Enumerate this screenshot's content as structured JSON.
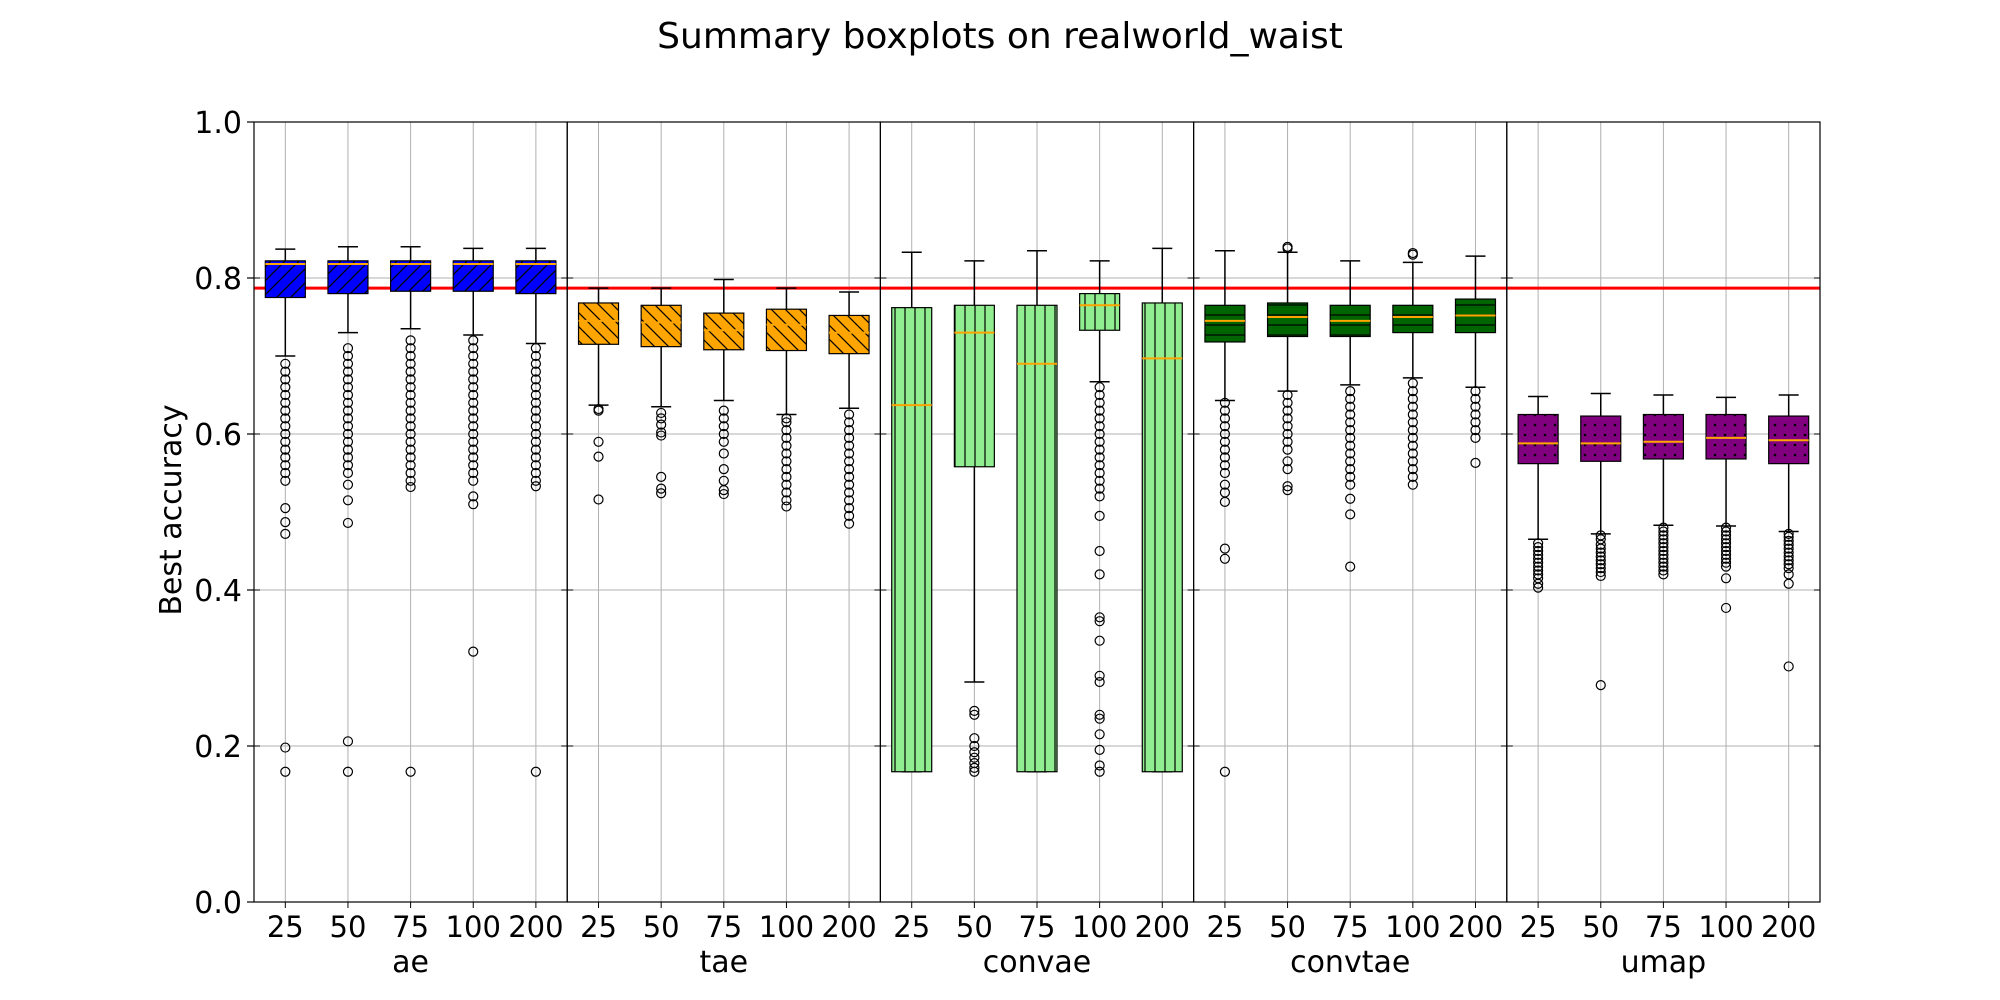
{
  "chart_data": {
    "type": "boxplot",
    "title": "Summary boxplots on realworld_waist",
    "ylabel": "Best accuracy",
    "ylim": [
      0.0,
      1.0
    ],
    "yticks": [
      "0.0",
      "0.2",
      "0.4",
      "0.6",
      "0.8",
      "1.0"
    ],
    "grid": true,
    "reference_line": {
      "y": 0.787,
      "color": "#ff0000"
    },
    "panels": [
      {
        "name": "ae",
        "color": "#0000ff",
        "hatch": "diagonal-up",
        "categories": [
          "25",
          "50",
          "75",
          "100",
          "200"
        ],
        "boxes": [
          {
            "whislo": 0.7,
            "q1": 0.775,
            "med": 0.818,
            "q3": 0.822,
            "whishi": 0.837,
            "fliers": [
              0.167,
              0.198,
              0.472,
              0.487,
              0.505,
              0.54,
              0.55,
              0.56,
              0.57,
              0.58,
              0.59,
              0.6,
              0.61,
              0.62,
              0.63,
              0.64,
              0.65,
              0.66,
              0.67,
              0.68,
              0.69
            ]
          },
          {
            "whislo": 0.73,
            "q1": 0.78,
            "med": 0.818,
            "q3": 0.822,
            "whishi": 0.84,
            "fliers": [
              0.167,
              0.206,
              0.486,
              0.515,
              0.535,
              0.55,
              0.56,
              0.57,
              0.58,
              0.59,
              0.6,
              0.61,
              0.62,
              0.63,
              0.64,
              0.65,
              0.66,
              0.67,
              0.68,
              0.69,
              0.7,
              0.71
            ]
          },
          {
            "whislo": 0.735,
            "q1": 0.783,
            "med": 0.818,
            "q3": 0.822,
            "whishi": 0.84,
            "fliers": [
              0.167,
              0.532,
              0.54,
              0.55,
              0.56,
              0.57,
              0.58,
              0.59,
              0.6,
              0.61,
              0.62,
              0.63,
              0.64,
              0.65,
              0.66,
              0.67,
              0.68,
              0.69,
              0.7,
              0.71,
              0.72
            ]
          },
          {
            "whislo": 0.727,
            "q1": 0.783,
            "med": 0.818,
            "q3": 0.822,
            "whishi": 0.838,
            "fliers": [
              0.321,
              0.51,
              0.52,
              0.54,
              0.55,
              0.56,
              0.57,
              0.58,
              0.59,
              0.6,
              0.61,
              0.62,
              0.63,
              0.64,
              0.65,
              0.66,
              0.67,
              0.68,
              0.69,
              0.7,
              0.71,
              0.72
            ]
          },
          {
            "whislo": 0.716,
            "q1": 0.78,
            "med": 0.818,
            "q3": 0.822,
            "whishi": 0.838,
            "fliers": [
              0.167,
              0.533,
              0.54,
              0.55,
              0.56,
              0.57,
              0.58,
              0.59,
              0.6,
              0.61,
              0.62,
              0.63,
              0.64,
              0.65,
              0.66,
              0.67,
              0.68,
              0.69,
              0.7,
              0.71
            ]
          }
        ]
      },
      {
        "name": "tae",
        "color": "#ffa500",
        "hatch": "diagonal-down",
        "categories": [
          "25",
          "50",
          "75",
          "100",
          "200"
        ],
        "boxes": [
          {
            "whislo": 0.637,
            "q1": 0.715,
            "med": 0.745,
            "q3": 0.768,
            "whishi": 0.787,
            "fliers": [
              0.516,
              0.571,
              0.59,
              0.63,
              0.632
            ]
          },
          {
            "whislo": 0.635,
            "q1": 0.712,
            "med": 0.743,
            "q3": 0.765,
            "whishi": 0.787,
            "fliers": [
              0.524,
              0.53,
              0.545,
              0.598,
              0.602,
              0.612,
              0.62,
              0.627
            ]
          },
          {
            "whislo": 0.643,
            "q1": 0.708,
            "med": 0.733,
            "q3": 0.755,
            "whishi": 0.798,
            "fliers": [
              0.523,
              0.528,
              0.54,
              0.555,
              0.575,
              0.59,
              0.6,
              0.61,
              0.62,
              0.63
            ]
          },
          {
            "whislo": 0.625,
            "q1": 0.707,
            "med": 0.74,
            "q3": 0.76,
            "whishi": 0.787,
            "fliers": [
              0.507,
              0.515,
              0.525,
              0.535,
              0.545,
              0.555,
              0.565,
              0.575,
              0.585,
              0.595,
              0.605,
              0.615,
              0.62
            ]
          },
          {
            "whislo": 0.633,
            "q1": 0.703,
            "med": 0.73,
            "q3": 0.752,
            "whishi": 0.782,
            "fliers": [
              0.485,
              0.495,
              0.505,
              0.515,
              0.525,
              0.535,
              0.545,
              0.555,
              0.565,
              0.575,
              0.585,
              0.595,
              0.605,
              0.615,
              0.625
            ]
          }
        ]
      },
      {
        "name": "convae",
        "color": "#90ee90",
        "hatch": "vertical",
        "categories": [
          "25",
          "50",
          "75",
          "100",
          "200"
        ],
        "boxes": [
          {
            "whislo": 0.167,
            "q1": 0.167,
            "med": 0.637,
            "q3": 0.762,
            "whishi": 0.833,
            "fliers": []
          },
          {
            "whislo": 0.282,
            "q1": 0.558,
            "med": 0.73,
            "q3": 0.765,
            "whishi": 0.822,
            "fliers": [
              0.167,
              0.172,
              0.178,
              0.185,
              0.192,
              0.2,
              0.21,
              0.24,
              0.245
            ]
          },
          {
            "whislo": 0.167,
            "q1": 0.167,
            "med": 0.69,
            "q3": 0.765,
            "whishi": 0.835,
            "fliers": []
          },
          {
            "whislo": 0.667,
            "q1": 0.733,
            "med": 0.765,
            "q3": 0.78,
            "whishi": 0.822,
            "fliers": [
              0.167,
              0.175,
              0.195,
              0.215,
              0.235,
              0.24,
              0.282,
              0.29,
              0.335,
              0.36,
              0.365,
              0.42,
              0.45,
              0.495,
              0.52,
              0.53,
              0.54,
              0.55,
              0.56,
              0.57,
              0.58,
              0.59,
              0.6,
              0.61,
              0.62,
              0.63,
              0.64,
              0.65,
              0.66
            ]
          },
          {
            "whislo": 0.167,
            "q1": 0.167,
            "med": 0.697,
            "q3": 0.768,
            "whishi": 0.838,
            "fliers": []
          }
        ]
      },
      {
        "name": "convtae",
        "color": "#006400",
        "hatch": "horizontal",
        "categories": [
          "25",
          "50",
          "75",
          "100",
          "200"
        ],
        "boxes": [
          {
            "whislo": 0.643,
            "q1": 0.718,
            "med": 0.745,
            "q3": 0.765,
            "whishi": 0.835,
            "fliers": [
              0.167,
              0.44,
              0.453,
              0.513,
              0.525,
              0.535,
              0.55,
              0.56,
              0.57,
              0.58,
              0.59,
              0.6,
              0.61,
              0.62,
              0.63,
              0.64
            ]
          },
          {
            "whislo": 0.655,
            "q1": 0.725,
            "med": 0.75,
            "q3": 0.768,
            "whishi": 0.833,
            "fliers": [
              0.528,
              0.533,
              0.555,
              0.565,
              0.58,
              0.59,
              0.6,
              0.61,
              0.62,
              0.63,
              0.64,
              0.65,
              0.84,
              0.838
            ]
          },
          {
            "whislo": 0.663,
            "q1": 0.725,
            "med": 0.745,
            "q3": 0.765,
            "whishi": 0.822,
            "fliers": [
              0.43,
              0.497,
              0.517,
              0.535,
              0.545,
              0.555,
              0.565,
              0.575,
              0.585,
              0.595,
              0.605,
              0.615,
              0.625,
              0.635,
              0.645,
              0.655
            ]
          },
          {
            "whislo": 0.672,
            "q1": 0.73,
            "med": 0.75,
            "q3": 0.765,
            "whishi": 0.82,
            "fliers": [
              0.535,
              0.545,
              0.555,
              0.565,
              0.575,
              0.585,
              0.595,
              0.605,
              0.615,
              0.625,
              0.635,
              0.645,
              0.655,
              0.665,
              0.83,
              0.832
            ]
          },
          {
            "whislo": 0.66,
            "q1": 0.73,
            "med": 0.752,
            "q3": 0.773,
            "whishi": 0.828,
            "fliers": [
              0.563,
              0.595,
              0.605,
              0.615,
              0.625,
              0.635,
              0.645,
              0.655
            ]
          }
        ]
      },
      {
        "name": "umap",
        "color": "#800080",
        "hatch": "dots",
        "categories": [
          "25",
          "50",
          "75",
          "100",
          "200"
        ],
        "boxes": [
          {
            "whislo": 0.465,
            "q1": 0.562,
            "med": 0.588,
            "q3": 0.625,
            "whishi": 0.648,
            "fliers": [
              0.403,
              0.408,
              0.415,
              0.42,
              0.425,
              0.43,
              0.435,
              0.44,
              0.445,
              0.45,
              0.455,
              0.46
            ]
          },
          {
            "whislo": 0.472,
            "q1": 0.565,
            "med": 0.588,
            "q3": 0.623,
            "whishi": 0.652,
            "fliers": [
              0.278,
              0.418,
              0.423,
              0.428,
              0.433,
              0.438,
              0.443,
              0.448,
              0.453,
              0.458,
              0.465,
              0.47
            ]
          },
          {
            "whislo": 0.483,
            "q1": 0.568,
            "med": 0.59,
            "q3": 0.625,
            "whishi": 0.65,
            "fliers": [
              0.42,
              0.425,
              0.43,
              0.435,
              0.44,
              0.445,
              0.45,
              0.455,
              0.46,
              0.465,
              0.47,
              0.475,
              0.48
            ]
          },
          {
            "whislo": 0.482,
            "q1": 0.568,
            "med": 0.595,
            "q3": 0.625,
            "whishi": 0.647,
            "fliers": [
              0.377,
              0.415,
              0.43,
              0.435,
              0.44,
              0.445,
              0.45,
              0.455,
              0.46,
              0.465,
              0.47,
              0.475,
              0.48
            ]
          },
          {
            "whislo": 0.475,
            "q1": 0.562,
            "med": 0.592,
            "q3": 0.623,
            "whishi": 0.65,
            "fliers": [
              0.302,
              0.408,
              0.42,
              0.428,
              0.433,
              0.438,
              0.443,
              0.448,
              0.453,
              0.458,
              0.463,
              0.468,
              0.472
            ]
          }
        ]
      }
    ]
  }
}
